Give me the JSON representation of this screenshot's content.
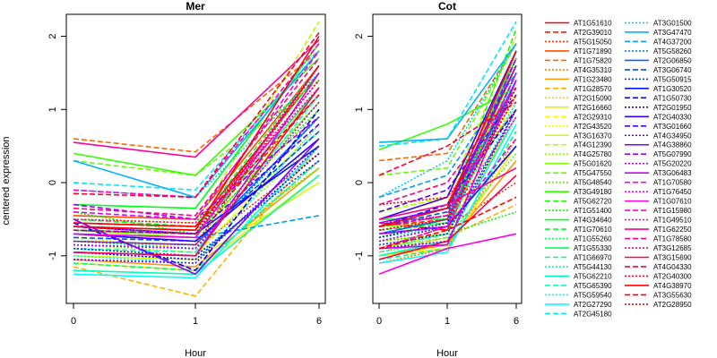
{
  "chart_data": {
    "type": "line",
    "ylabel": "centered expression",
    "panels": [
      {
        "title": "Mer",
        "xlabel": "Hour",
        "x_ticks": [
          "0",
          "1",
          "6"
        ],
        "ylim": [
          -1.65,
          2.3
        ],
        "y_ticks": [
          "-1",
          "0",
          "1",
          "2"
        ]
      },
      {
        "title": "Cot",
        "xlabel": "Hour",
        "x_ticks": [
          "0",
          "1",
          "6"
        ],
        "ylim": [
          -1.65,
          2.3
        ],
        "y_ticks": [
          "-1",
          "0",
          "1",
          "2"
        ]
      }
    ],
    "series": [
      {
        "name": "AT1G51610",
        "color": "#ff0000",
        "dash": "solid",
        "mer": [
          -0.55,
          -0.6,
          1.5
        ],
        "cot": [
          -0.55,
          -0.65,
          1.4
        ]
      },
      {
        "name": "AT2G39010",
        "color": "#ff1a00",
        "dash": "dashed",
        "mer": [
          -0.6,
          -0.7,
          1.2
        ],
        "cot": [
          -0.6,
          -0.5,
          1.5
        ]
      },
      {
        "name": "AT5G15050",
        "color": "#ff3300",
        "dash": "dotted",
        "mer": [
          -0.8,
          -0.9,
          0.4
        ],
        "cot": [
          -0.9,
          -0.6,
          0.0
        ]
      },
      {
        "name": "AT1G71890",
        "color": "#ff4d00",
        "dash": "solid",
        "mer": [
          -0.45,
          -0.5,
          1.6
        ],
        "cot": [
          -0.5,
          -0.3,
          1.7
        ]
      },
      {
        "name": "AT1G75820",
        "color": "#ff6600",
        "dash": "dashed",
        "mer": [
          0.6,
          0.42,
          1.8
        ],
        "cot": [
          0.3,
          0.4,
          1.9
        ]
      },
      {
        "name": "AT4G35310",
        "color": "#ff8000",
        "dash": "dotted",
        "mer": [
          -1.1,
          -1.2,
          0.3
        ],
        "cot": [
          -1.1,
          -0.9,
          0.6
        ]
      },
      {
        "name": "AT1G23480",
        "color": "#ff9900",
        "dash": "solid",
        "mer": [
          -1.05,
          -1.15,
          0.2
        ],
        "cot": [
          -1.0,
          -0.85,
          0.3
        ]
      },
      {
        "name": "AT1G28570",
        "color": "#ffb300",
        "dash": "dashed",
        "mer": [
          -1.15,
          -1.55,
          0.5
        ],
        "cot": [
          -0.95,
          -0.75,
          -0.3
        ]
      },
      {
        "name": "AT2G15090",
        "color": "#ffcc00",
        "dash": "dotted",
        "mer": [
          -0.7,
          -0.8,
          1.0
        ],
        "cot": [
          -0.7,
          -0.6,
          1.3
        ]
      },
      {
        "name": "AT2G16660",
        "color": "#ffe600",
        "dash": "solid",
        "mer": [
          -1.1,
          -1.2,
          0.1
        ],
        "cot": [
          -1.0,
          -0.9,
          0.5
        ]
      },
      {
        "name": "AT2G29310",
        "color": "#ffff00",
        "dash": "dashed",
        "mer": [
          -0.9,
          -1.0,
          0.8
        ],
        "cot": [
          -0.8,
          -0.7,
          1.2
        ]
      },
      {
        "name": "AT2G43520",
        "color": "#e6ff00",
        "dash": "dotted",
        "mer": [
          -0.75,
          -0.9,
          1.3
        ],
        "cot": [
          -0.8,
          -0.6,
          1.6
        ]
      },
      {
        "name": "AT3G16370",
        "color": "#ccff00",
        "dash": "solid",
        "mer": [
          -1.0,
          -1.05,
          0.0
        ],
        "cot": [
          -0.9,
          -0.7,
          0.9
        ]
      },
      {
        "name": "AT4G12390",
        "color": "#b3ff00",
        "dash": "dashed",
        "mer": [
          -0.5,
          -0.55,
          2.2
        ],
        "cot": [
          -0.4,
          -0.2,
          2.0
        ]
      },
      {
        "name": "AT4G25780",
        "color": "#99ff00",
        "dash": "dotted",
        "mer": [
          -0.85,
          -0.95,
          0.6
        ],
        "cot": [
          -0.75,
          -0.5,
          1.8
        ]
      },
      {
        "name": "AT5G01620",
        "color": "#80ff00",
        "dash": "solid",
        "mer": [
          -0.65,
          -0.75,
          1.1
        ],
        "cot": [
          -0.6,
          -0.55,
          1.7
        ]
      },
      {
        "name": "AT5G47550",
        "color": "#66ff00",
        "dash": "dashed",
        "mer": [
          0.3,
          0.1,
          1.4
        ],
        "cot": [
          0.1,
          0.2,
          1.9
        ]
      },
      {
        "name": "AT5G48540",
        "color": "#4dff00",
        "dash": "dotted",
        "mer": [
          -0.95,
          -1.0,
          0.2
        ],
        "cot": [
          -0.9,
          -0.75,
          0.4
        ]
      },
      {
        "name": "AT3G49180",
        "color": "#33ff00",
        "dash": "solid",
        "mer": [
          0.4,
          0.1,
          1.7
        ],
        "cot": [
          0.45,
          0.8,
          1.3
        ]
      },
      {
        "name": "AT5G62720",
        "color": "#1aff00",
        "dash": "dashed",
        "mer": [
          -0.6,
          -0.65,
          1.5
        ],
        "cot": [
          -0.6,
          -0.4,
          2.1
        ]
      },
      {
        "name": "AT1G51400",
        "color": "#00ff00",
        "dash": "dotted",
        "mer": [
          -0.4,
          -0.7,
          1.0
        ],
        "cot": [
          -0.8,
          -0.7,
          -0.4
        ]
      },
      {
        "name": "AT4G34640",
        "color": "#00ff1a",
        "dash": "solid",
        "mer": [
          -0.3,
          -0.35,
          1.9
        ],
        "cot": [
          -0.5,
          -0.5,
          1.6
        ]
      },
      {
        "name": "AT1G70610",
        "color": "#00ff33",
        "dash": "dashed",
        "mer": [
          -0.5,
          -0.6,
          1.6
        ],
        "cot": [
          -0.65,
          -0.55,
          1.5
        ]
      },
      {
        "name": "AT1G55260",
        "color": "#00ff4d",
        "dash": "dotted",
        "mer": [
          -0.7,
          -0.8,
          0.7
        ],
        "cot": [
          -0.7,
          -0.5,
          1.1
        ]
      },
      {
        "name": "AT1G55330",
        "color": "#00ff66",
        "dash": "solid",
        "mer": [
          -0.65,
          -0.7,
          1.3
        ],
        "cot": [
          -0.7,
          -0.6,
          1.8
        ]
      },
      {
        "name": "AT1G66970",
        "color": "#00ff80",
        "dash": "dashed",
        "mer": [
          -1.1,
          -1.2,
          0.3
        ],
        "cot": [
          -1.05,
          -0.9,
          0.7
        ]
      },
      {
        "name": "AT5G44130",
        "color": "#00ff99",
        "dash": "dotted",
        "mer": [
          -0.8,
          -0.9,
          0.9
        ],
        "cot": [
          -0.75,
          -0.6,
          1.4
        ]
      },
      {
        "name": "AT5G62210",
        "color": "#00ffb3",
        "dash": "solid",
        "mer": [
          -1.2,
          -1.25,
          0.1
        ],
        "cot": [
          -1.0,
          -0.8,
          0.9
        ]
      },
      {
        "name": "AT5G65390",
        "color": "#00ffcc",
        "dash": "dashed",
        "mer": [
          -0.9,
          -0.95,
          1.2
        ],
        "cot": [
          -0.9,
          -0.7,
          1.5
        ]
      },
      {
        "name": "AT5G59540",
        "color": "#00ffe6",
        "dash": "dotted",
        "mer": [
          -1.0,
          -1.1,
          0.8
        ],
        "cot": [
          -0.95,
          -0.8,
          1.1
        ]
      },
      {
        "name": "AT2G27290",
        "color": "#00ffff",
        "dash": "solid",
        "mer": [
          -1.25,
          -1.3,
          0.5
        ],
        "cot": [
          -1.1,
          -0.95,
          0.8
        ]
      },
      {
        "name": "AT2G45180",
        "color": "#00e6ff",
        "dash": "dashed",
        "mer": [
          0.0,
          -0.1,
          1.8
        ],
        "cot": [
          0.5,
          0.6,
          2.2
        ]
      },
      {
        "name": "AT3G01500",
        "color": "#00ccff",
        "dash": "dotted",
        "mer": [
          -0.1,
          -0.2,
          1.5
        ],
        "cot": [
          -0.2,
          0.3,
          1.9
        ]
      },
      {
        "name": "AT3G47470",
        "color": "#00b3ff",
        "dash": "solid",
        "mer": [
          0.3,
          -0.2,
          1.8
        ],
        "cot": [
          0.55,
          0.6,
          1.9
        ]
      },
      {
        "name": "AT4G37200",
        "color": "#0099ff",
        "dash": "dashed",
        "mer": [
          -0.7,
          -0.75,
          -0.45
        ],
        "cot": [
          -0.2,
          0.1,
          1.5
        ]
      },
      {
        "name": "AT5G58260",
        "color": "#0080ff",
        "dash": "dotted",
        "mer": [
          -0.85,
          -0.9,
          0.9
        ],
        "cot": [
          -0.8,
          -0.6,
          1.7
        ]
      },
      {
        "name": "AT2G06850",
        "color": "#0066ff",
        "dash": "solid",
        "mer": [
          -0.8,
          -0.85,
          0.9
        ],
        "cot": [
          -0.7,
          -0.5,
          1.4
        ]
      },
      {
        "name": "AT3G06740",
        "color": "#004dff",
        "dash": "dashed",
        "mer": [
          -0.75,
          -0.8,
          0.7
        ],
        "cot": [
          -0.6,
          -0.4,
          1.6
        ]
      },
      {
        "name": "AT5G50915",
        "color": "#0033ff",
        "dash": "dotted",
        "mer": [
          -0.9,
          -1.0,
          0.3
        ],
        "cot": [
          -0.85,
          -0.7,
          1.0
        ]
      },
      {
        "name": "AT1G30520",
        "color": "#001aff",
        "dash": "solid",
        "mer": [
          -0.6,
          -0.7,
          0.5
        ],
        "cot": [
          -0.7,
          -0.6,
          0.5
        ]
      },
      {
        "name": "AT1G50730",
        "color": "#0000ff",
        "dash": "dashed",
        "mer": [
          -0.55,
          -1.2,
          1.0
        ],
        "cot": [
          -0.6,
          -0.3,
          1.0
        ]
      },
      {
        "name": "AT2G01950",
        "color": "#1a00ff",
        "dash": "dotted",
        "mer": [
          -0.95,
          -1.05,
          0.4
        ],
        "cot": [
          -0.75,
          -0.55,
          1.3
        ]
      },
      {
        "name": "AT2G40330",
        "color": "#3300ff",
        "dash": "solid",
        "mer": [
          -0.7,
          -0.8,
          0.6
        ],
        "cot": [
          -0.5,
          -0.2,
          1.8
        ]
      },
      {
        "name": "AT3G01660",
        "color": "#4d00ff",
        "dash": "dashed",
        "mer": [
          -0.65,
          -0.7,
          0.8
        ],
        "cot": [
          -0.4,
          -0.1,
          1.2
        ]
      },
      {
        "name": "AT4G34950",
        "color": "#6600ff",
        "dash": "dotted",
        "mer": [
          -1.05,
          -1.1,
          0.5
        ],
        "cot": [
          -0.9,
          -0.8,
          1.0
        ]
      },
      {
        "name": "AT4G38860",
        "color": "#8000ff",
        "dash": "solid",
        "mer": [
          -0.5,
          -1.25,
          0.6
        ],
        "cot": [
          -0.55,
          -0.35,
          1.6
        ]
      },
      {
        "name": "AT5G07990",
        "color": "#9900ff",
        "dash": "dashed",
        "mer": [
          -0.3,
          -0.5,
          0.9
        ],
        "cot": [
          -0.6,
          -0.45,
          1.7
        ]
      },
      {
        "name": "AT5G20220",
        "color": "#b300ff",
        "dash": "dotted",
        "mer": [
          -0.85,
          -0.9,
          1.1
        ],
        "cot": [
          -0.8,
          -0.6,
          1.5
        ]
      },
      {
        "name": "AT3G06483",
        "color": "#cc00ff",
        "dash": "solid",
        "mer": [
          -0.95,
          -1.0,
          1.5
        ],
        "cot": [
          -0.9,
          -0.85,
          1.4
        ]
      },
      {
        "name": "AT1G70580",
        "color": "#e600ff",
        "dash": "dashed",
        "mer": [
          -0.4,
          -0.5,
          1.8
        ],
        "cot": [
          -0.7,
          -0.6,
          1.5
        ]
      },
      {
        "name": "AT1G76450",
        "color": "#ff00ff",
        "dash": "dotted",
        "mer": [
          -0.6,
          -0.7,
          1.4
        ],
        "cot": [
          -0.55,
          -0.45,
          1.2
        ]
      },
      {
        "name": "AT1G07610",
        "color": "#ff00e6",
        "dash": "solid",
        "mer": [
          -0.7,
          -0.75,
          1.6
        ],
        "cot": [
          -1.25,
          -0.9,
          -0.7
        ]
      },
      {
        "name": "AT1G15980",
        "color": "#ff00cc",
        "dash": "dashed",
        "mer": [
          -0.1,
          -0.2,
          1.9
        ],
        "cot": [
          -0.9,
          -0.6,
          0.6
        ]
      },
      {
        "name": "AT1G49510",
        "color": "#ff00b3",
        "dash": "dotted",
        "mer": [
          -0.5,
          -0.55,
          1.3
        ],
        "cot": [
          -0.65,
          -0.5,
          0.9
        ]
      },
      {
        "name": "AT1G62250",
        "color": "#ff0099",
        "dash": "solid",
        "mer": [
          0.55,
          0.35,
          1.95
        ],
        "cot": [
          -0.5,
          -0.3,
          0.2
        ]
      },
      {
        "name": "AT1G78580",
        "color": "#ff0080",
        "dash": "dashed",
        "mer": [
          -0.35,
          -0.45,
          1.7
        ],
        "cot": [
          -0.3,
          0.0,
          1.3
        ]
      },
      {
        "name": "AT3G12685",
        "color": "#ff0066",
        "dash": "dotted",
        "mer": [
          -0.6,
          -0.65,
          1.4
        ],
        "cot": [
          -0.6,
          -0.45,
          1.6
        ]
      },
      {
        "name": "AT3G15690",
        "color": "#ff004d",
        "dash": "solid",
        "mer": [
          -0.95,
          -1.0,
          1.3
        ],
        "cot": [
          -1.05,
          -0.8,
          0.1
        ]
      },
      {
        "name": "AT4G04330",
        "color": "#ff0033",
        "dash": "dashed",
        "mer": [
          -0.15,
          -0.2,
          2.05
        ],
        "cot": [
          0.1,
          0.5,
          1.1
        ]
      },
      {
        "name": "AT2G40300",
        "color": "#ff001a",
        "dash": "dotted",
        "mer": [
          -0.8,
          -0.85,
          1.6
        ],
        "cot": [
          -0.3,
          -0.2,
          1.0
        ]
      },
      {
        "name": "AT4G38970",
        "color": "#ff0000",
        "dash": "solid",
        "mer": [
          -0.6,
          -0.65,
          2.0
        ],
        "cot": [
          -0.6,
          -0.35,
          1.8
        ]
      },
      {
        "name": "AT3G55630",
        "color": "#ff0000",
        "dash": "dashed",
        "mer": [
          -0.55,
          -0.6,
          1.2
        ],
        "cot": [
          -0.9,
          -0.65,
          -0.2
        ]
      },
      {
        "name": "AT2G28950",
        "color": "#ff0000",
        "dash": "dotted",
        "mer": [
          -0.65,
          -0.7,
          1.6
        ],
        "cot": [
          -0.65,
          -0.5,
          1.2
        ]
      }
    ]
  }
}
